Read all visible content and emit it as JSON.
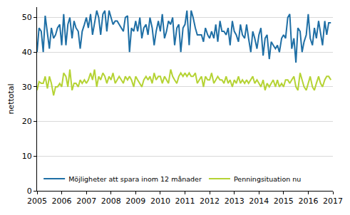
{
  "chart_data": {
    "type": "line",
    "y_label": "nettotal",
    "x": [
      2005,
      2005.08,
      2005.17,
      2005.25,
      2005.33,
      2005.42,
      2005.5,
      2005.58,
      2005.67,
      2005.75,
      2005.83,
      2005.92,
      2006,
      2006.08,
      2006.17,
      2006.25,
      2006.33,
      2006.42,
      2006.5,
      2006.58,
      2006.67,
      2006.75,
      2006.83,
      2006.92,
      2007,
      2007.08,
      2007.17,
      2007.25,
      2007.33,
      2007.42,
      2007.5,
      2007.58,
      2007.67,
      2007.75,
      2007.83,
      2007.92,
      2008,
      2008.08,
      2008.17,
      2008.25,
      2008.33,
      2008.42,
      2008.5,
      2008.58,
      2008.67,
      2008.75,
      2008.83,
      2008.92,
      2009,
      2009.08,
      2009.17,
      2009.25,
      2009.33,
      2009.42,
      2009.5,
      2009.58,
      2009.67,
      2009.75,
      2009.83,
      2009.92,
      2010,
      2010.08,
      2010.17,
      2010.25,
      2010.33,
      2010.42,
      2010.5,
      2010.58,
      2010.67,
      2010.75,
      2010.83,
      2010.92,
      2011,
      2011.08,
      2011.17,
      2011.25,
      2011.33,
      2011.42,
      2011.5,
      2011.58,
      2011.67,
      2011.75,
      2011.83,
      2011.92,
      2012,
      2012.08,
      2012.17,
      2012.25,
      2012.33,
      2012.42,
      2012.5,
      2012.58,
      2012.67,
      2012.75,
      2012.83,
      2012.92,
      2013,
      2013.08,
      2013.17,
      2013.25,
      2013.33,
      2013.42,
      2013.5,
      2013.58,
      2013.67,
      2013.75,
      2013.83,
      2013.92,
      2014,
      2014.08,
      2014.17,
      2014.25,
      2014.33,
      2014.42,
      2014.5,
      2014.58,
      2014.67,
      2014.75,
      2014.83,
      2014.92,
      2015,
      2015.08,
      2015.17,
      2015.25,
      2015.33,
      2015.42,
      2015.5,
      2015.58,
      2015.67,
      2015.75,
      2015.83,
      2015.92,
      2016,
      2016.08,
      2016.17,
      2016.25,
      2016.33,
      2016.42,
      2016.5,
      2016.58,
      2016.67,
      2016.75,
      2016.83,
      2016.92
    ],
    "series": [
      {
        "name": "Möjligheter att spara inom 12 månader",
        "color": "#1f6fa5",
        "values": [
          40,
          47,
          46,
          40,
          50.5,
          45,
          41,
          47,
          44,
          45,
          47,
          48,
          42,
          51,
          42,
          48,
          50,
          44,
          49,
          47,
          46,
          41,
          46,
          48,
          50,
          47,
          51,
          45,
          48,
          52,
          50,
          45,
          51,
          52,
          46,
          52,
          50,
          48,
          49,
          49,
          48,
          47,
          46,
          50,
          50.5,
          40,
          47,
          46,
          49,
          46,
          50,
          44,
          47,
          48,
          45,
          50,
          47,
          42,
          46,
          49,
          46,
          51,
          44,
          46,
          49,
          48,
          50,
          42,
          47,
          48,
          40,
          47,
          48,
          52,
          42,
          52,
          50,
          47,
          45,
          45,
          45,
          43,
          47,
          45,
          44,
          46,
          44,
          48,
          43,
          49,
          46,
          46,
          45,
          47,
          42,
          49,
          46,
          45,
          43,
          48,
          45,
          44,
          48,
          44,
          40,
          46,
          44,
          41,
          45,
          47,
          39,
          44,
          45,
          38,
          43,
          42,
          41,
          42,
          40,
          44,
          45,
          44,
          50,
          51,
          41,
          44,
          37,
          47,
          46,
          40,
          43,
          45,
          51,
          44,
          42,
          47,
          44,
          49,
          45,
          42,
          49,
          45,
          48.5,
          48.5
        ]
      },
      {
        "name": "Penningsituation nu",
        "color": "#b5d334",
        "values": [
          29,
          31.5,
          31,
          31,
          33,
          29.5,
          33,
          31,
          27.5,
          30,
          30,
          31,
          30,
          34,
          33,
          30,
          35,
          29,
          31,
          31,
          30,
          32,
          31,
          32,
          31,
          32,
          34,
          32,
          35,
          30,
          33,
          32,
          34,
          33,
          31,
          33,
          32,
          34,
          31,
          32,
          33,
          32,
          31,
          33,
          32,
          33,
          32,
          30,
          33,
          32,
          31,
          30,
          32,
          33,
          32,
          33,
          31,
          34,
          32,
          33,
          33,
          31,
          33,
          32,
          31,
          35,
          33,
          32,
          31,
          33,
          34,
          33,
          34,
          33,
          34,
          33,
          33,
          34,
          31,
          32,
          33,
          30,
          33,
          32,
          32,
          34,
          31,
          32,
          33,
          32,
          32,
          31,
          33,
          31,
          32,
          30,
          32,
          31,
          33,
          31,
          32,
          31,
          32,
          31,
          32,
          33,
          31,
          32,
          31,
          30,
          32,
          29,
          31,
          30,
          31,
          32,
          30,
          32,
          30,
          31,
          30,
          32,
          32,
          31,
          32,
          33,
          30,
          29,
          34,
          32,
          30,
          29,
          31,
          33,
          30,
          29,
          31,
          33,
          31,
          30,
          32,
          33,
          33,
          32
        ]
      }
    ],
    "xlim": [
      2005,
      2017
    ],
    "xticks": [
      2005,
      2006,
      2007,
      2008,
      2009,
      2010,
      2011,
      2012,
      2013,
      2014,
      2015,
      2016,
      2017
    ],
    "ylim": [
      0,
      53
    ],
    "yticks": [
      0,
      10,
      20,
      30,
      40,
      50
    ],
    "grid": true,
    "legend": "bottom left"
  }
}
